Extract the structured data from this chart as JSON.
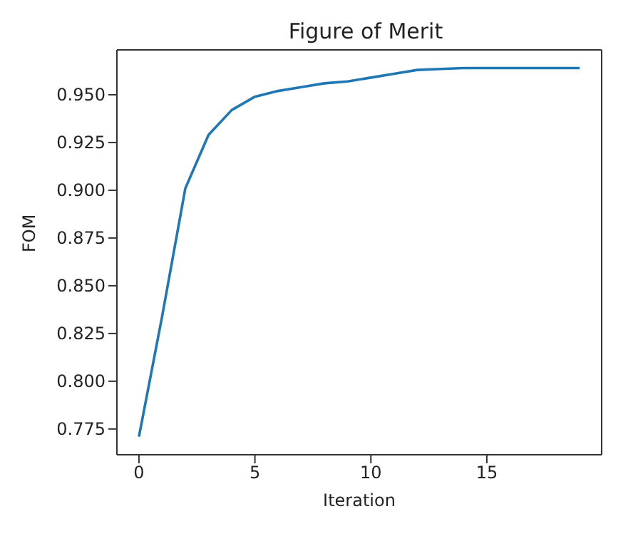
{
  "chart_data": {
    "type": "line",
    "title": "Figure of Merit",
    "xlabel": "Iteration",
    "ylabel": "FOM",
    "x": [
      0,
      1,
      2,
      3,
      4,
      5,
      6,
      7,
      8,
      9,
      10,
      11,
      12,
      13,
      14,
      15,
      16,
      17,
      18,
      19
    ],
    "series": [
      {
        "color": "#1f77b4",
        "values": [
          0.771,
          0.834,
          0.901,
          0.929,
          0.942,
          0.949,
          0.952,
          0.954,
          0.956,
          0.957,
          0.959,
          0.961,
          0.963,
          0.9635,
          0.964,
          0.964,
          0.964,
          0.964,
          0.964,
          0.964
        ]
      }
    ],
    "xlim": [
      -0.95,
      19.95
    ],
    "xticks": [
      0,
      5,
      10,
      15
    ],
    "ylim": [
      0.7615,
      0.9735
    ],
    "yticks": [
      0.775,
      {
        "value": 0.8,
        "label": "0.800"
      },
      0.825,
      {
        "value": 0.85,
        "label": "0.850"
      },
      0.875,
      {
        "value": 0.9,
        "label": "0.900"
      },
      0.925,
      {
        "value": 0.95,
        "label": "0.950"
      }
    ],
    "grid": false,
    "legend": false,
    "marker": "none",
    "line_style": "solid"
  }
}
